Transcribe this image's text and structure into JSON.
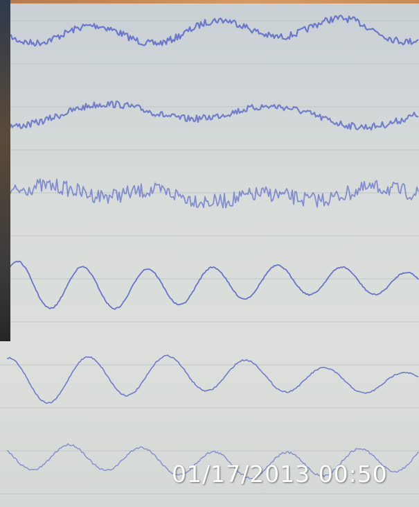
{
  "timestamp": "01/17/2013 00:50"
}
